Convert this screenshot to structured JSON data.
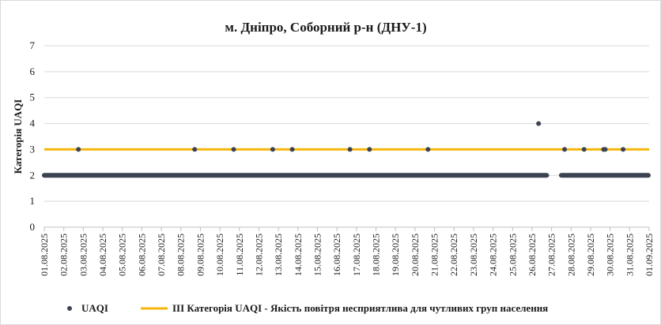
{
  "chart_data": {
    "type": "scatter",
    "title": "м. Дніпро, Соборний р-н (ДНУ-1)",
    "ylabel": "Категорія UAQI",
    "xlabel": "",
    "ylim": [
      0,
      7
    ],
    "yticks": [
      0,
      1,
      2,
      3,
      4,
      5,
      6,
      7
    ],
    "xlim": [
      "01.08.2025",
      "01.09.2025"
    ],
    "xticks": [
      "01.08.2025",
      "02.08.2025",
      "03.08.2025",
      "04.08.2025",
      "05.08.2025",
      "06.08.2025",
      "07.08.2025",
      "08.08.2025",
      "09.08.2025",
      "10.08.2025",
      "11.08.2025",
      "12.08.2025",
      "13.08.2025",
      "14.08.2025",
      "15.08.2025",
      "16.08.2025",
      "17.08.2025",
      "18.08.2025",
      "19.08.2025",
      "20.08.2025",
      "21.08.2025",
      "22.08.2025",
      "23.08.2025",
      "24.08.2025",
      "25.08.2025",
      "26.08.2025",
      "27.08.2025",
      "28.08.2025",
      "29.08.2025",
      "30.08.2025",
      "31.08.2025",
      "01.09.2025"
    ],
    "grid": "horizontal",
    "legend_position": "bottom",
    "series": [
      {
        "name": "UAQI",
        "kind": "points",
        "color": "#3b4252",
        "baseline_value": 2,
        "baseline_ranges": [
          [
            "01.08.2025 00:00",
            "26.08.2025 18:00"
          ],
          [
            "27.08.2025 12:00",
            "31.08.2025 23:00"
          ]
        ],
        "points": [
          {
            "x": "02.08.2025 18:00",
            "y": 3
          },
          {
            "x": "08.08.2025 17:00",
            "y": 3
          },
          {
            "x": "10.08.2025 17:00",
            "y": 3
          },
          {
            "x": "12.08.2025 17:00",
            "y": 3
          },
          {
            "x": "13.08.2025 17:00",
            "y": 3
          },
          {
            "x": "16.08.2025 16:00",
            "y": 3
          },
          {
            "x": "17.08.2025 16:00",
            "y": 3
          },
          {
            "x": "20.08.2025 16:00",
            "y": 3
          },
          {
            "x": "26.08.2025 08:00",
            "y": 4
          },
          {
            "x": "27.08.2025 16:00",
            "y": 3
          },
          {
            "x": "28.08.2025 16:00",
            "y": 3
          },
          {
            "x": "29.08.2025 16:00",
            "y": 3
          },
          {
            "x": "29.08.2025 18:00",
            "y": 3
          },
          {
            "x": "30.08.2025 16:00",
            "y": 3
          }
        ]
      },
      {
        "name": "ІІІ Категорія UAQI - Якість повітря несприятлива для чутливих груп населення",
        "kind": "line",
        "color": "#f5b50a",
        "y": 3
      }
    ]
  }
}
